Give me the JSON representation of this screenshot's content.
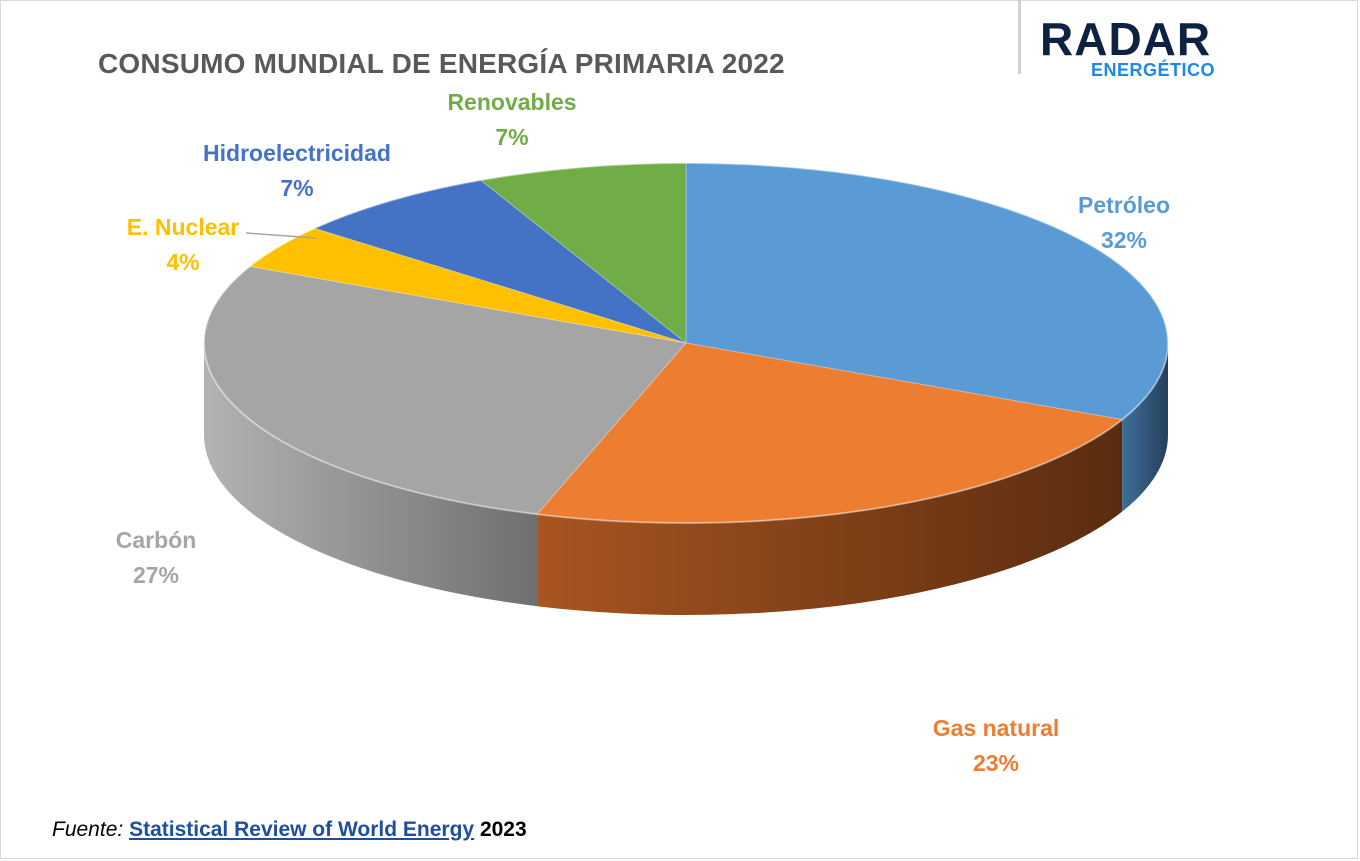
{
  "header": {
    "title": "CONSUMO MUNDIAL DE ENERGÍA PRIMARIA 2022"
  },
  "logo": {
    "main": "RADAR",
    "sub": "ENERGÉTICO"
  },
  "footer": {
    "label": "Fuente:",
    "source": "Statistical Review of World Energy",
    "year": "2023"
  },
  "chart_data": {
    "type": "pie",
    "title": "CONSUMO MUNDIAL DE ENERGÍA PRIMARIA 2022",
    "slices": [
      {
        "label": "Petróleo",
        "value": 32,
        "display": "32%",
        "color": "#5b9bd5",
        "label_color": "#5b9bd5"
      },
      {
        "label": "Gas natural",
        "value": 23,
        "display": "23%",
        "color": "#ed7d31",
        "label_color": "#ed7d31"
      },
      {
        "label": "Carbón",
        "value": 27,
        "display": "27%",
        "color": "#a5a5a5",
        "label_color": "#a5a5a5"
      },
      {
        "label": "E. Nuclear",
        "value": 4,
        "display": "4%",
        "color": "#ffc000",
        "label_color": "#ffc000"
      },
      {
        "label": "Hidroelectricidad",
        "value": 7,
        "display": "7%",
        "color": "#4472c4",
        "label_color": "#4472c4"
      },
      {
        "label": "Renovables",
        "value": 7,
        "display": "7%",
        "color": "#70ad47",
        "label_color": "#70ad47"
      }
    ],
    "start_angle_deg": 270,
    "direction": "clockwise",
    "style": "3d"
  }
}
